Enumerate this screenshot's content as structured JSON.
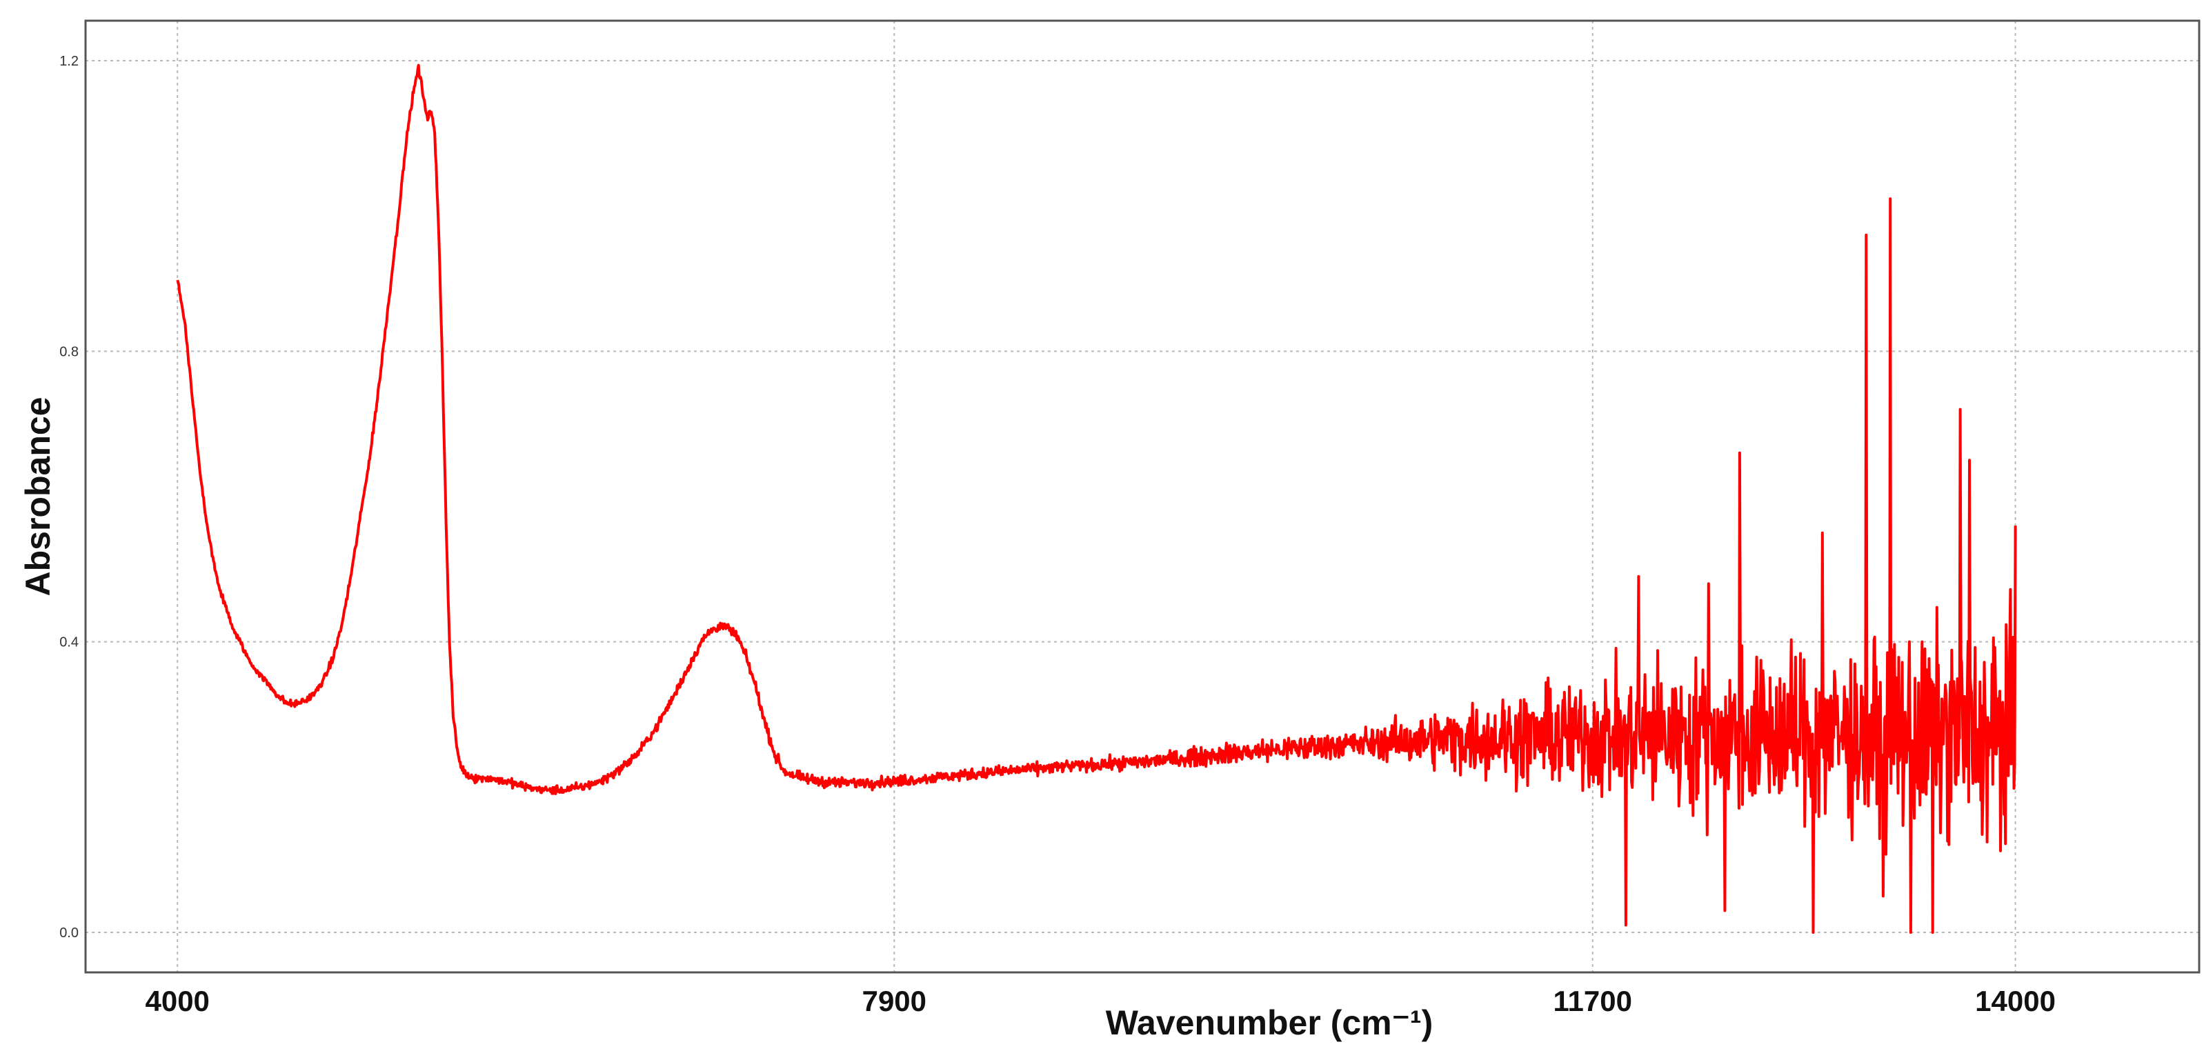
{
  "chart_data": {
    "type": "line",
    "title": "",
    "xlabel": "Wavenumber (cm⁻¹)",
    "ylabel": "Absrobance",
    "xlim": [
      3500,
      15000
    ],
    "ylim": [
      -0.055,
      1.255
    ],
    "x_ticks": [
      4000,
      7900,
      11700,
      14000
    ],
    "x_tick_labels": [
      "4000",
      "7900",
      "11700",
      "14000"
    ],
    "y_ticks": [
      0.0,
      0.4,
      0.8,
      1.2
    ],
    "y_tick_labels": [
      "0.0",
      "0.4",
      "0.8",
      "1.2"
    ],
    "grid": true,
    "legend": "none",
    "series": [
      {
        "color": "#ff0000",
        "noise_level": [
          [
            4000,
            0.004
          ],
          [
            9000,
            0.008
          ],
          [
            10500,
            0.02
          ],
          [
            11300,
            0.06
          ],
          [
            12000,
            0.09
          ],
          [
            12800,
            0.11
          ],
          [
            13500,
            0.13
          ],
          [
            14000,
            0.14
          ]
        ],
        "spikes": [
          {
            "x": 13190,
            "y": 0.96
          },
          {
            "x": 13320,
            "y": 1.01
          },
          {
            "x": 13700,
            "y": 0.72
          },
          {
            "x": 12500,
            "y": 0.66
          },
          {
            "x": 13750,
            "y": 0.65
          },
          {
            "x": 12950,
            "y": 0.55
          },
          {
            "x": 14000,
            "y": 0.56
          },
          {
            "x": 12330,
            "y": 0.48
          },
          {
            "x": 11950,
            "y": 0.49
          },
          {
            "x": 13550,
            "y": 0.52
          },
          {
            "x": 11880,
            "y": 0.01
          },
          {
            "x": 12900,
            "y": 0.0
          },
          {
            "x": 13430,
            "y": 0.0
          },
          {
            "x": 13550,
            "y": 0.0
          },
          {
            "x": 12420,
            "y": 0.03
          },
          {
            "x": 13280,
            "y": 0.05
          }
        ],
        "points": [
          [
            4000,
            0.9
          ],
          [
            4040,
            0.84
          ],
          [
            4080,
            0.74
          ],
          [
            4120,
            0.64
          ],
          [
            4160,
            0.56
          ],
          [
            4220,
            0.48
          ],
          [
            4300,
            0.42
          ],
          [
            4400,
            0.37
          ],
          [
            4500,
            0.34
          ],
          [
            4550,
            0.325
          ],
          [
            4600,
            0.315
          ],
          [
            4650,
            0.315
          ],
          [
            4700,
            0.32
          ],
          [
            4750,
            0.33
          ],
          [
            4800,
            0.35
          ],
          [
            4850,
            0.38
          ],
          [
            4900,
            0.43
          ],
          [
            4950,
            0.5
          ],
          [
            5000,
            0.58
          ],
          [
            5050,
            0.66
          ],
          [
            5100,
            0.76
          ],
          [
            5150,
            0.87
          ],
          [
            5200,
            0.98
          ],
          [
            5250,
            1.1
          ],
          [
            5280,
            1.15
          ],
          [
            5310,
            1.19
          ],
          [
            5340,
            1.15
          ],
          [
            5360,
            1.12
          ],
          [
            5380,
            1.13
          ],
          [
            5400,
            1.1
          ],
          [
            5420,
            0.98
          ],
          [
            5440,
            0.8
          ],
          [
            5460,
            0.58
          ],
          [
            5480,
            0.4
          ],
          [
            5500,
            0.3
          ],
          [
            5520,
            0.255
          ],
          [
            5540,
            0.23
          ],
          [
            5570,
            0.218
          ],
          [
            5620,
            0.212
          ],
          [
            5700,
            0.212
          ],
          [
            5800,
            0.207
          ],
          [
            5900,
            0.2
          ],
          [
            6000,
            0.196
          ],
          [
            6100,
            0.196
          ],
          [
            6200,
            0.2
          ],
          [
            6300,
            0.208
          ],
          [
            6400,
            0.223
          ],
          [
            6500,
            0.245
          ],
          [
            6600,
            0.28
          ],
          [
            6700,
            0.325
          ],
          [
            6800,
            0.375
          ],
          [
            6850,
            0.4
          ],
          [
            6900,
            0.415
          ],
          [
            6950,
            0.422
          ],
          [
            7000,
            0.418
          ],
          [
            7050,
            0.405
          ],
          [
            7100,
            0.375
          ],
          [
            7150,
            0.335
          ],
          [
            7200,
            0.285
          ],
          [
            7250,
            0.245
          ],
          [
            7300,
            0.222
          ],
          [
            7400,
            0.212
          ],
          [
            7500,
            0.208
          ],
          [
            7600,
            0.206
          ],
          [
            7700,
            0.206
          ],
          [
            7900,
            0.208
          ],
          [
            8200,
            0.215
          ],
          [
            8500,
            0.222
          ],
          [
            8800,
            0.228
          ],
          [
            9100,
            0.232
          ],
          [
            9400,
            0.238
          ],
          [
            9700,
            0.246
          ],
          [
            10000,
            0.252
          ],
          [
            10300,
            0.258
          ],
          [
            10600,
            0.262
          ],
          [
            10900,
            0.266
          ],
          [
            11200,
            0.268
          ],
          [
            11500,
            0.27
          ],
          [
            11800,
            0.272
          ],
          [
            12100,
            0.272
          ],
          [
            12400,
            0.272
          ],
          [
            12700,
            0.272
          ],
          [
            13000,
            0.272
          ],
          [
            13300,
            0.272
          ],
          [
            13600,
            0.272
          ],
          [
            13800,
            0.27
          ],
          [
            14000,
            0.27
          ]
        ]
      }
    ]
  }
}
